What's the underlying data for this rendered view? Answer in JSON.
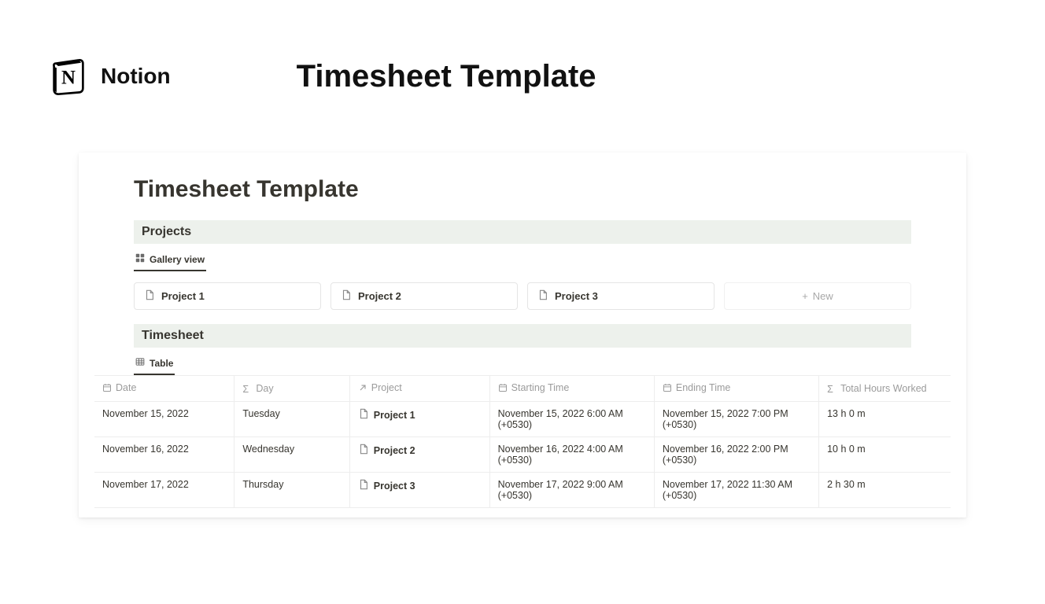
{
  "header": {
    "brand": "Notion",
    "title": "Timesheet Template"
  },
  "panel": {
    "title": "Timesheet Template"
  },
  "projects": {
    "section_label": "Projects",
    "view_label": "Gallery view",
    "cards": [
      {
        "name": "Project 1"
      },
      {
        "name": "Project 2"
      },
      {
        "name": "Project 3"
      }
    ],
    "new_label": "New"
  },
  "timesheet": {
    "section_label": "Timesheet",
    "view_label": "Table",
    "columns": {
      "date": "Date",
      "day": "Day",
      "project": "Project",
      "start": "Starting Time",
      "end": "Ending Time",
      "total": "Total Hours Worked"
    },
    "rows": [
      {
        "date": "November 15, 2022",
        "day": "Tuesday",
        "project": "Project 1",
        "start_line1": "November 15, 2022 6:00 AM",
        "start_line2": "(+0530)",
        "end_line1": "November 15, 2022 7:00 PM",
        "end_line2": "(+0530)",
        "total": "13 h 0 m"
      },
      {
        "date": "November 16, 2022",
        "day": "Wednesday",
        "project": "Project 2",
        "start_line1": "November 16, 2022 4:00 AM",
        "start_line2": "(+0530)",
        "end_line1": "November 16, 2022 2:00 PM",
        "end_line2": "(+0530)",
        "total": "10 h 0 m"
      },
      {
        "date": "November 17, 2022",
        "day": "Thursday",
        "project": "Project 3",
        "start_line1": "November 17, 2022 9:00 AM",
        "start_line2": "(+0530)",
        "end_line1": "November 17, 2022 11:30 AM",
        "end_line2": "(+0530)",
        "total": "2 h 30 m"
      }
    ]
  },
  "colors": {
    "section_bg": "#edf1ec",
    "border": "#ededed",
    "muted_text": "#9b9b9b",
    "text": "#37352f"
  }
}
